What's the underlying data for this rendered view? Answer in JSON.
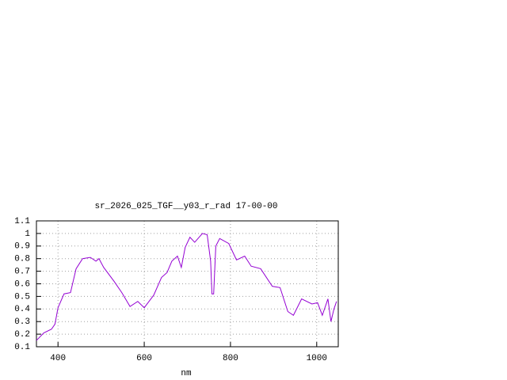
{
  "chart_data": {
    "type": "line",
    "title": "sr_2026_025_TGF__y03_r_rad 17-00-00",
    "x_label": "nm",
    "x": [
      350,
      367,
      385,
      393,
      400,
      414,
      429,
      442,
      457,
      475,
      488,
      495,
      506,
      530,
      548,
      567,
      585,
      600,
      622,
      640,
      653,
      664,
      677,
      686,
      695,
      706,
      717,
      735,
      746,
      754,
      757,
      761,
      766,
      775,
      796,
      814,
      833,
      848,
      870,
      897,
      915,
      933,
      946,
      965,
      989,
      1002,
      1013,
      1026,
      1033,
      1040,
      1046
    ],
    "values": [
      0.15,
      0.21,
      0.24,
      0.28,
      0.41,
      0.52,
      0.53,
      0.72,
      0.8,
      0.81,
      0.78,
      0.8,
      0.73,
      0.62,
      0.53,
      0.42,
      0.46,
      0.41,
      0.51,
      0.65,
      0.69,
      0.78,
      0.82,
      0.73,
      0.89,
      0.97,
      0.93,
      1.0,
      0.99,
      0.78,
      0.52,
      0.52,
      0.9,
      0.96,
      0.92,
      0.79,
      0.82,
      0.74,
      0.72,
      0.58,
      0.57,
      0.38,
      0.35,
      0.48,
      0.44,
      0.45,
      0.35,
      0.48,
      0.3,
      0.4,
      0.46
    ],
    "color": "#9400d3",
    "xlim": [
      350,
      1050
    ],
    "xticks": [
      400,
      600,
      800,
      1000
    ],
    "ylim": [
      0.1,
      1.1
    ],
    "yticks": [
      0.1,
      0.2,
      0.3,
      0.4,
      0.5,
      0.6,
      0.7,
      0.8,
      0.9,
      1,
      1.1
    ],
    "grid": true
  }
}
